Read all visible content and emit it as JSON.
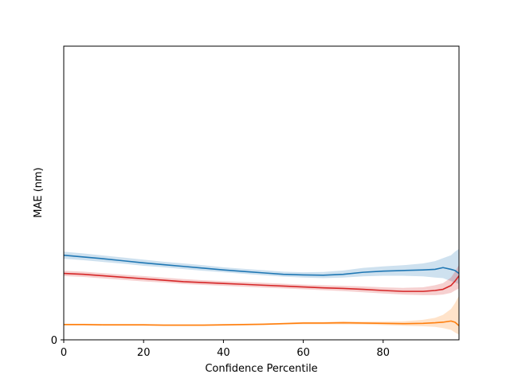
{
  "chart_data": {
    "type": "line",
    "title": "",
    "xlabel": "Confidence Percentile",
    "ylabel": "MAE (nm)",
    "xlim": [
      0,
      99
    ],
    "ylim": [
      0,
      1
    ],
    "xticks": [
      0,
      20,
      40,
      60,
      80
    ],
    "yticks": [
      0
    ],
    "grid": false,
    "legend": "none",
    "series": [
      {
        "color": "#1f77b4",
        "x": [
          0,
          5,
          10,
          15,
          20,
          25,
          30,
          35,
          40,
          45,
          50,
          55,
          60,
          65,
          70,
          75,
          80,
          85,
          90,
          93,
          95,
          97,
          98,
          99
        ],
        "y": [
          0.288,
          0.282,
          0.276,
          0.269,
          0.262,
          0.256,
          0.25,
          0.244,
          0.238,
          0.233,
          0.228,
          0.223,
          0.221,
          0.22,
          0.223,
          0.23,
          0.234,
          0.236,
          0.238,
          0.24,
          0.246,
          0.24,
          0.236,
          0.226
        ],
        "lower": [
          0.276,
          0.271,
          0.265,
          0.259,
          0.252,
          0.247,
          0.241,
          0.235,
          0.23,
          0.225,
          0.22,
          0.215,
          0.212,
          0.21,
          0.212,
          0.216,
          0.218,
          0.218,
          0.216,
          0.212,
          0.21,
          0.2,
          0.195,
          0.19
        ],
        "upper": [
          0.3,
          0.294,
          0.287,
          0.28,
          0.273,
          0.266,
          0.26,
          0.254,
          0.247,
          0.242,
          0.237,
          0.232,
          0.23,
          0.231,
          0.236,
          0.245,
          0.25,
          0.254,
          0.26,
          0.268,
          0.278,
          0.288,
          0.3,
          0.31
        ]
      },
      {
        "color": "#d62728",
        "x": [
          0,
          5,
          10,
          15,
          20,
          25,
          30,
          35,
          40,
          45,
          50,
          55,
          60,
          65,
          70,
          75,
          80,
          85,
          90,
          93,
          95,
          97,
          98,
          99
        ],
        "y": [
          0.226,
          0.223,
          0.218,
          0.213,
          0.208,
          0.203,
          0.198,
          0.195,
          0.192,
          0.189,
          0.186,
          0.183,
          0.18,
          0.177,
          0.175,
          0.172,
          0.168,
          0.165,
          0.165,
          0.168,
          0.172,
          0.185,
          0.2,
          0.218
        ],
        "lower": [
          0.217,
          0.214,
          0.209,
          0.204,
          0.199,
          0.195,
          0.19,
          0.187,
          0.184,
          0.181,
          0.178,
          0.175,
          0.172,
          0.169,
          0.166,
          0.162,
          0.158,
          0.154,
          0.152,
          0.152,
          0.154,
          0.16,
          0.168,
          0.175
        ],
        "upper": [
          0.235,
          0.232,
          0.227,
          0.222,
          0.217,
          0.212,
          0.207,
          0.203,
          0.2,
          0.197,
          0.194,
          0.191,
          0.188,
          0.186,
          0.184,
          0.182,
          0.179,
          0.177,
          0.179,
          0.186,
          0.193,
          0.212,
          0.232,
          0.255
        ]
      },
      {
        "color": "#ff7f0e",
        "x": [
          0,
          5,
          10,
          15,
          20,
          25,
          30,
          35,
          40,
          45,
          50,
          55,
          60,
          65,
          70,
          75,
          80,
          85,
          90,
          93,
          95,
          97,
          98,
          99
        ],
        "y": [
          0.052,
          0.052,
          0.051,
          0.051,
          0.051,
          0.05,
          0.05,
          0.05,
          0.051,
          0.052,
          0.053,
          0.055,
          0.057,
          0.057,
          0.058,
          0.057,
          0.056,
          0.055,
          0.056,
          0.058,
          0.06,
          0.064,
          0.06,
          0.048
        ],
        "lower": [
          0.049,
          0.049,
          0.048,
          0.048,
          0.048,
          0.047,
          0.047,
          0.047,
          0.048,
          0.049,
          0.05,
          0.052,
          0.053,
          0.053,
          0.053,
          0.052,
          0.05,
          0.048,
          0.046,
          0.044,
          0.04,
          0.034,
          0.025,
          0.018
        ],
        "upper": [
          0.055,
          0.055,
          0.054,
          0.054,
          0.054,
          0.053,
          0.053,
          0.053,
          0.054,
          0.055,
          0.056,
          0.058,
          0.061,
          0.061,
          0.063,
          0.062,
          0.062,
          0.063,
          0.068,
          0.075,
          0.085,
          0.105,
          0.125,
          0.15
        ]
      }
    ]
  }
}
